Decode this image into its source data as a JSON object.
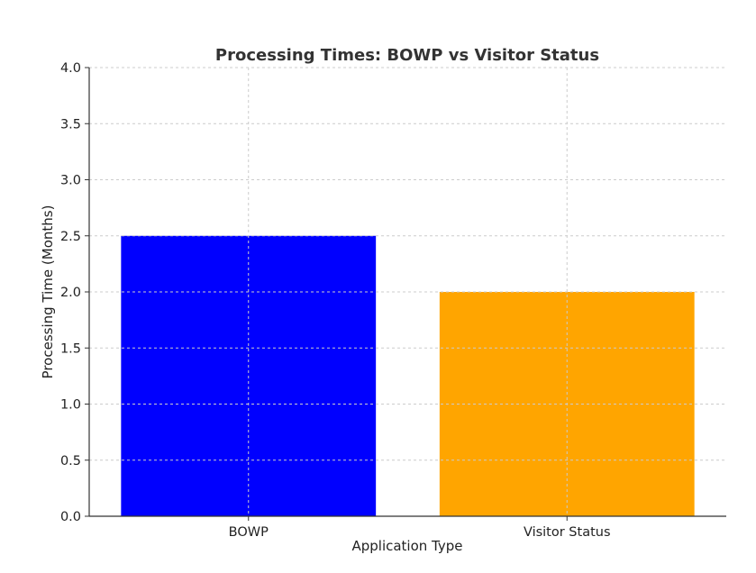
{
  "chart_data": {
    "type": "bar",
    "title": "Processing Times: BOWP vs Visitor Status",
    "xlabel": "Application Type",
    "ylabel": "Processing Time (Months)",
    "categories": [
      "BOWP",
      "Visitor Status"
    ],
    "values": [
      2.5,
      2.0
    ],
    "colors": [
      "#0000ff",
      "#ffa500"
    ],
    "ylim": [
      0,
      4.0
    ],
    "yticks": [
      "0.0",
      "0.5",
      "1.0",
      "1.5",
      "2.0",
      "2.5",
      "3.0",
      "3.5",
      "4.0"
    ],
    "grid": true
  }
}
